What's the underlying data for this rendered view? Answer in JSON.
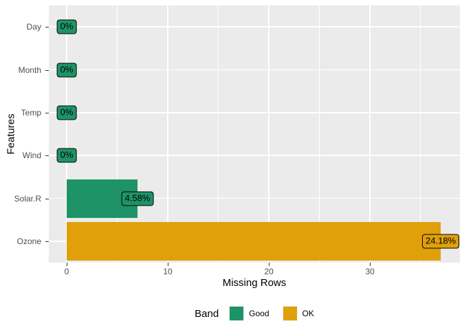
{
  "chart_data": {
    "type": "bar",
    "orientation": "horizontal",
    "title": "",
    "xlabel": "Missing Rows",
    "ylabel": "Features",
    "categories": [
      "Day",
      "Month",
      "Temp",
      "Wind",
      "Solar.R",
      "Ozone"
    ],
    "series": [
      {
        "name": "Missing Rows",
        "values": [
          0,
          0,
          0,
          0,
          7,
          37
        ]
      }
    ],
    "bar_labels": [
      "0%",
      "0%",
      "0%",
      "0%",
      "4.58%",
      "24.18%"
    ],
    "bands": [
      "Good",
      "Good",
      "Good",
      "Good",
      "Good",
      "OK"
    ],
    "band_colors": {
      "Good": "#1E9368",
      "OK": "#DFA00A"
    },
    "x_ticks": [
      0,
      10,
      20,
      30
    ],
    "x_minor_ticks": [
      5,
      15,
      25,
      35
    ],
    "xlim": [
      -1.77,
      38.9
    ],
    "grid": "on",
    "panel_background": "#EBEBEB",
    "gridline_color": "#ffffff",
    "axis_text_color": "#4D4D4D",
    "legend": {
      "title": "Band",
      "position": "bottom",
      "entries": [
        {
          "label": "Good",
          "color": "#1E9368"
        },
        {
          "label": "OK",
          "color": "#DFA00A"
        }
      ]
    }
  }
}
